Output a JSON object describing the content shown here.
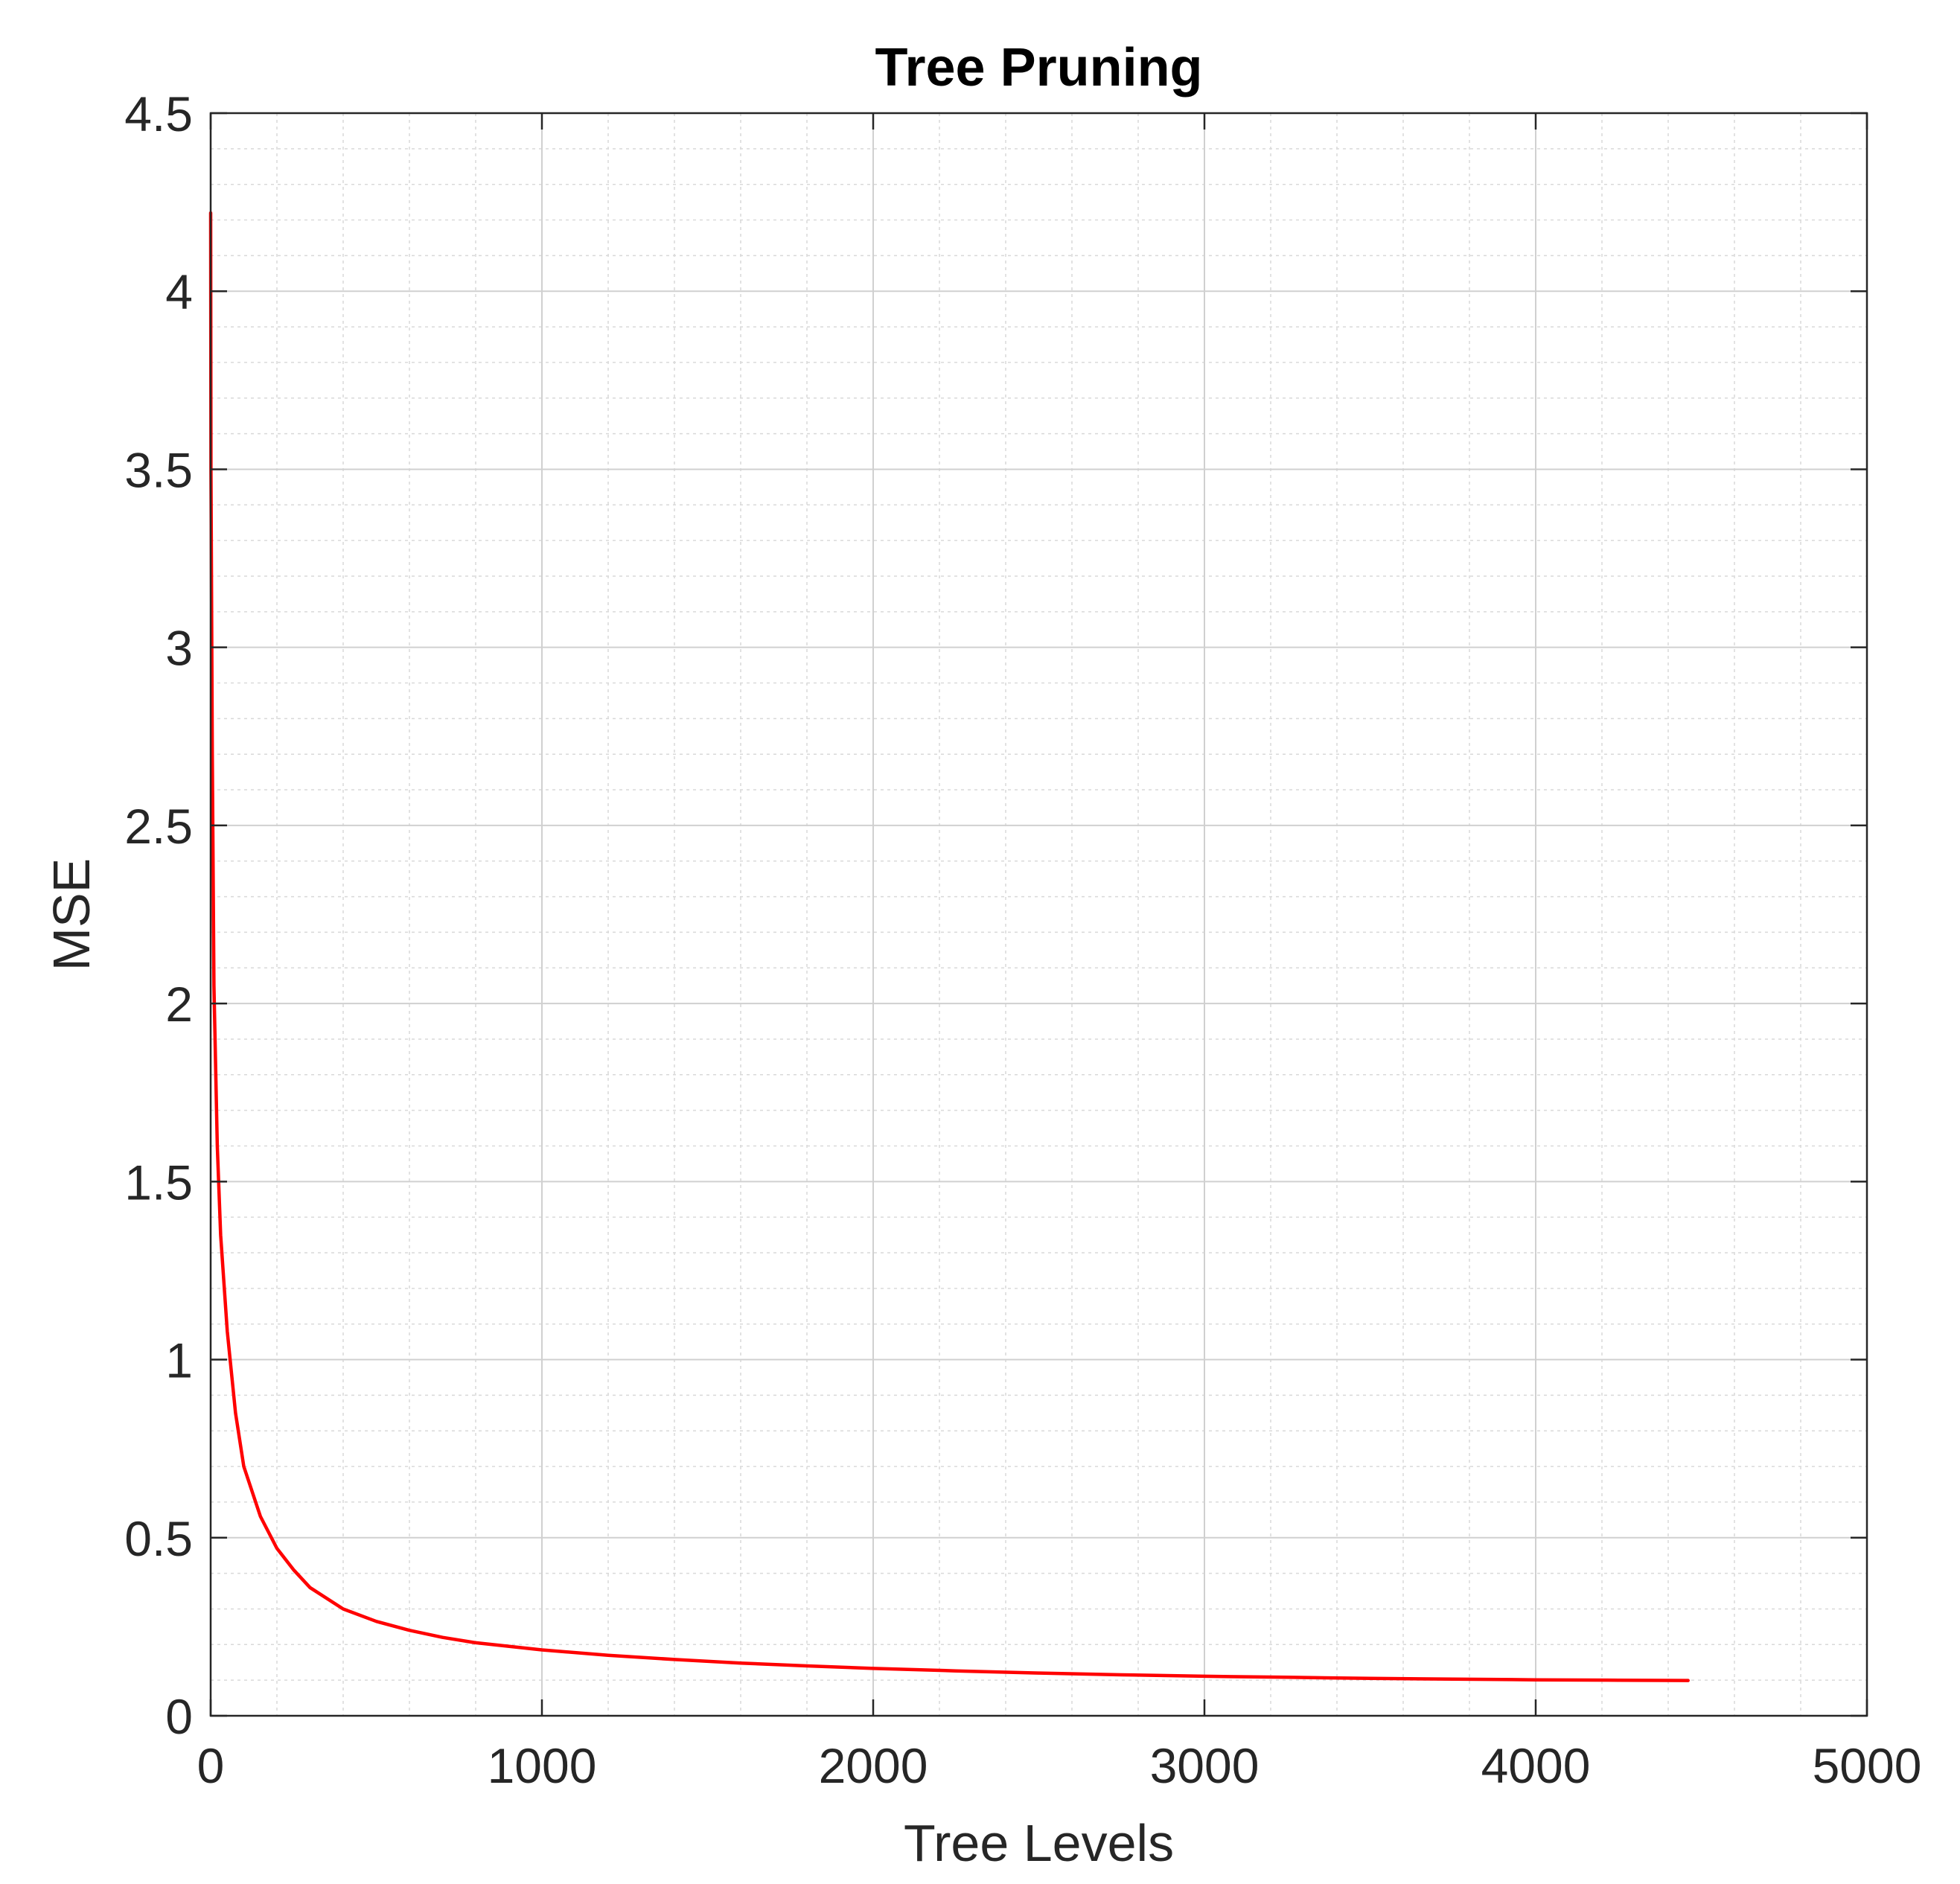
{
  "chart_data": {
    "type": "line",
    "title": "Tree Pruning",
    "xlabel": "Tree Levels",
    "ylabel": "MSE",
    "xlim": [
      0,
      5000
    ],
    "ylim": [
      0,
      4.5
    ],
    "xticks": [
      0,
      1000,
      2000,
      3000,
      4000,
      5000
    ],
    "xtick_labels": [
      "0",
      "1000",
      "2000",
      "3000",
      "4000",
      "5000"
    ],
    "yticks": [
      0,
      0.5,
      1,
      1.5,
      2,
      2.5,
      3,
      3.5,
      4,
      4.5
    ],
    "ytick_labels": [
      "0",
      "0.5",
      "1",
      "1.5",
      "2",
      "2.5",
      "3",
      "3.5",
      "4",
      "4.5"
    ],
    "grid": true,
    "minor_grid": true,
    "legend": "none",
    "series": [
      {
        "color": "#ff0000",
        "x": [
          0,
          1,
          5,
          10,
          20,
          30,
          50,
          75,
          100,
          150,
          200,
          250,
          300,
          400,
          500,
          600,
          700,
          800,
          1000,
          1200,
          1400,
          1600,
          1800,
          2000,
          2250,
          2500,
          2750,
          3000,
          3250,
          3500,
          3750,
          4000,
          4250,
          4460
        ],
        "y": [
          4.22,
          3.5,
          2.7,
          2.05,
          1.6,
          1.35,
          1.08,
          0.85,
          0.7,
          0.56,
          0.47,
          0.41,
          0.36,
          0.3,
          0.265,
          0.24,
          0.22,
          0.205,
          0.185,
          0.17,
          0.158,
          0.148,
          0.14,
          0.133,
          0.126,
          0.12,
          0.115,
          0.111,
          0.108,
          0.105,
          0.103,
          0.101,
          0.1,
          0.099
        ]
      }
    ]
  }
}
